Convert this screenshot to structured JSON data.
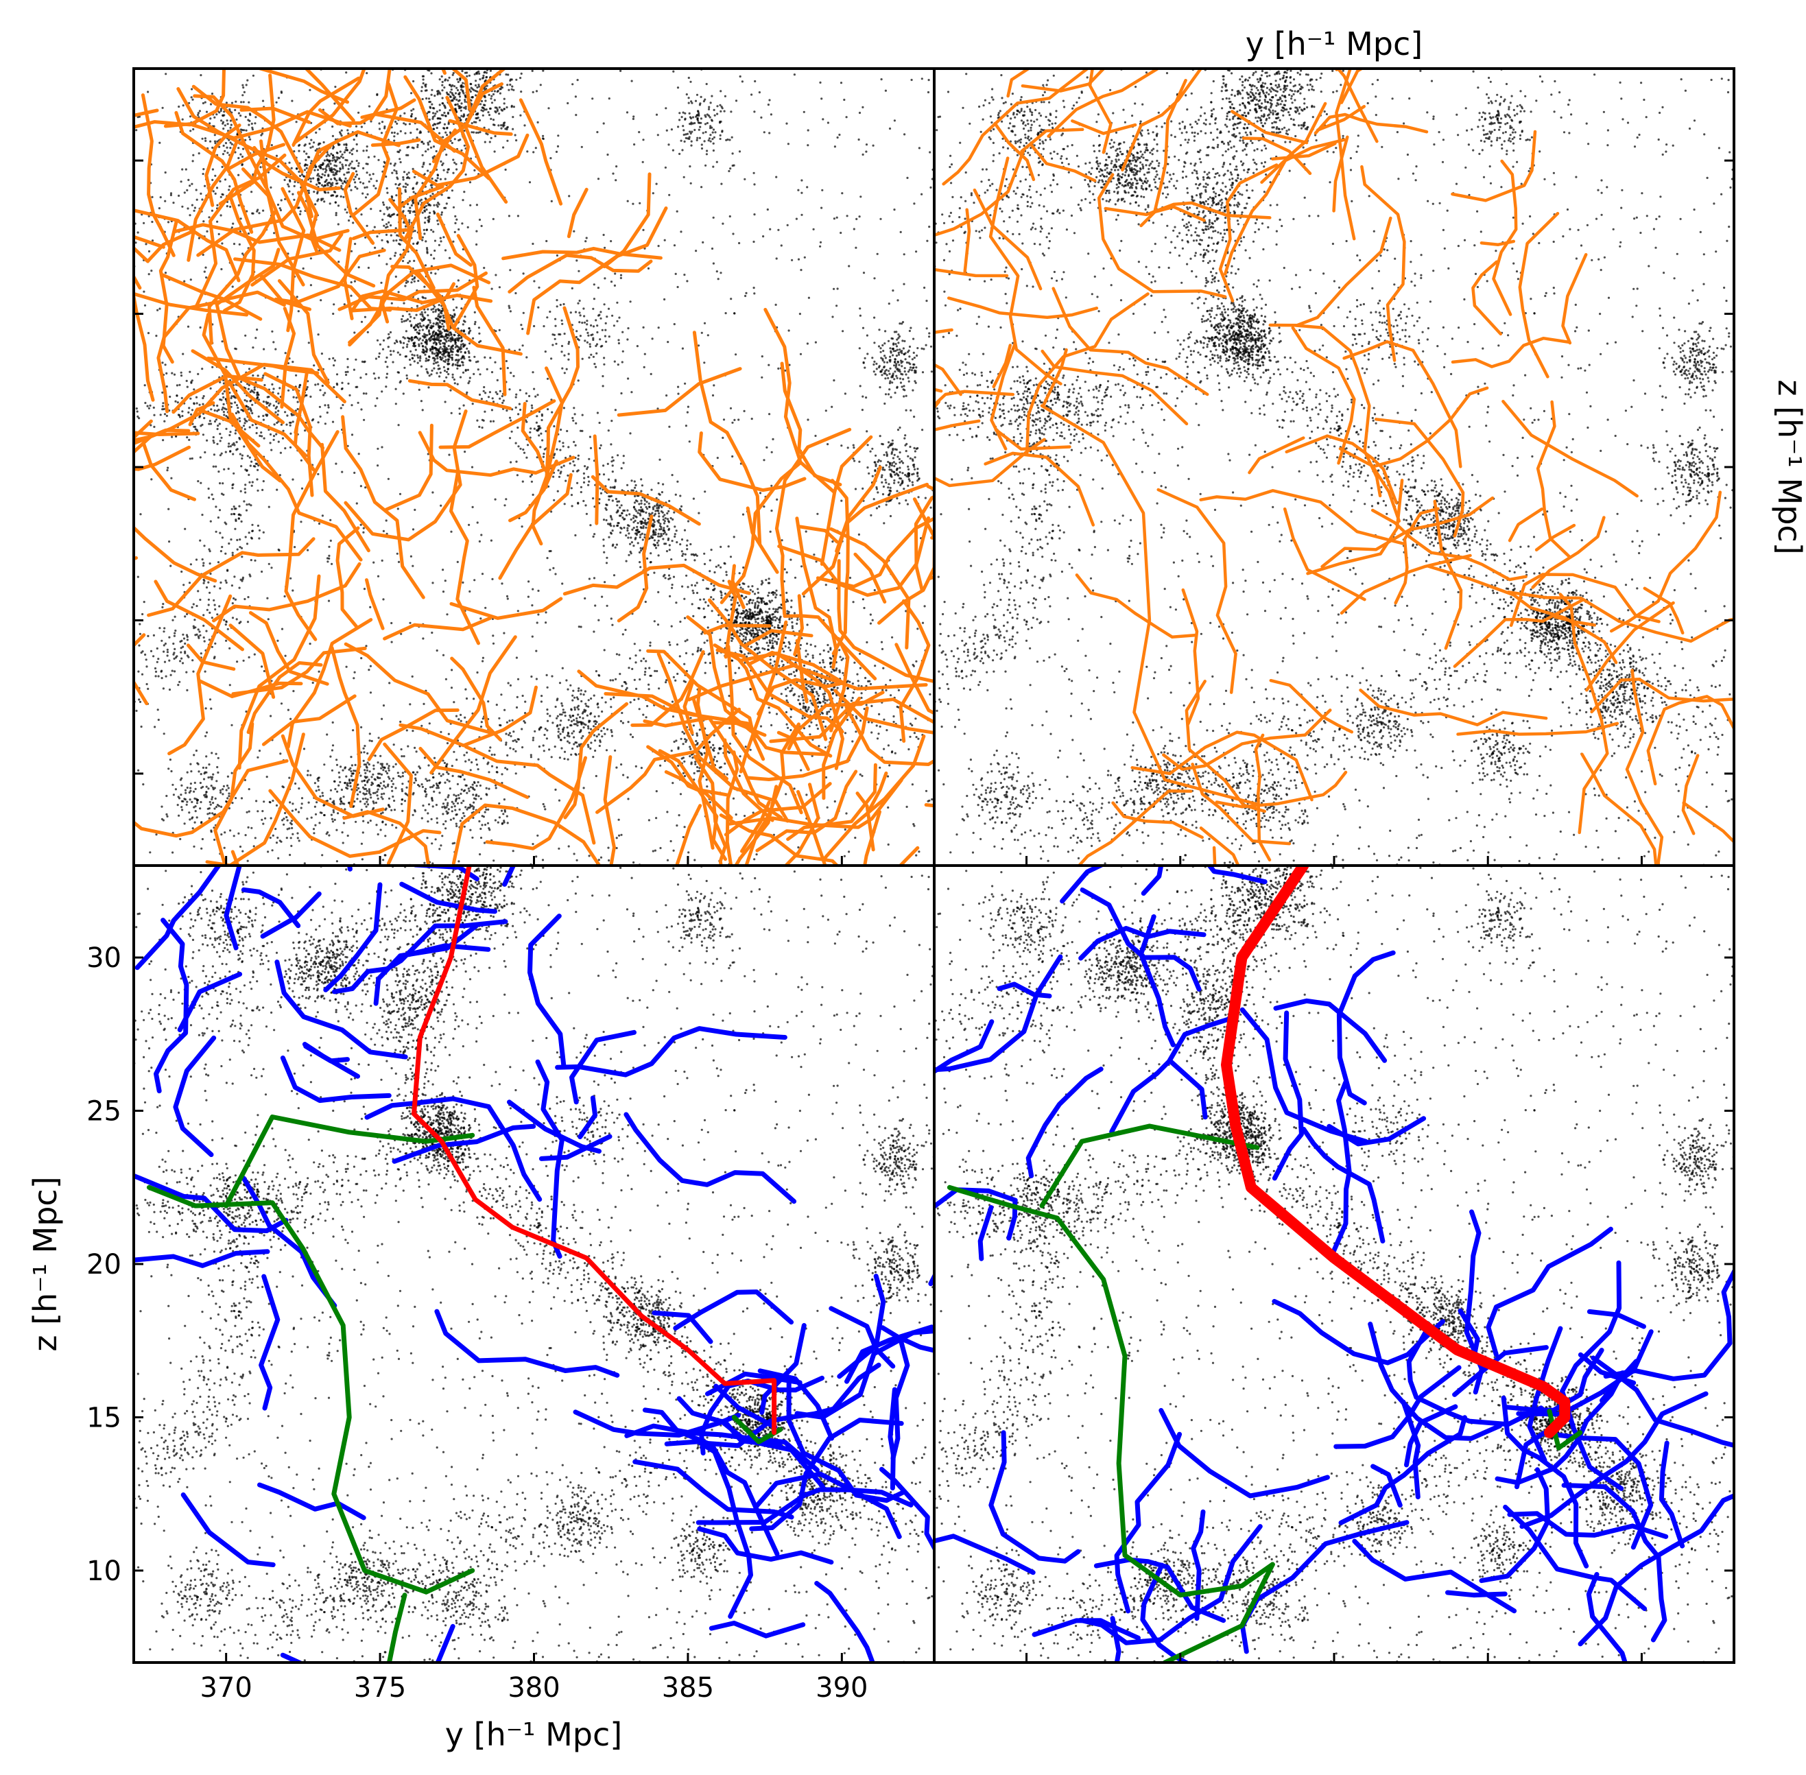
{
  "chart_data": [
    {
      "panel": "top-left",
      "type": "scatter",
      "xlim": [
        367,
        393
      ],
      "ylim": [
        7,
        33
      ],
      "series": [
        {
          "role": "dark-matter particles",
          "color": "#000000"
        },
        {
          "role": "network edges",
          "color": "#ff7f0e"
        }
      ]
    },
    {
      "panel": "top-right",
      "type": "scatter",
      "xlim": [
        367,
        393
      ],
      "ylim": [
        7,
        33
      ],
      "xlabel": "y [h⁻¹ Mpc]",
      "ylabel": "z [h⁻¹ Mpc]",
      "xlabel_position": "top",
      "ylabel_position": "right",
      "series": [
        {
          "role": "dark-matter particles",
          "color": "#000000"
        },
        {
          "role": "network edges",
          "color": "#ff7f0e"
        }
      ]
    },
    {
      "panel": "bottom-left",
      "type": "scatter",
      "xlim": [
        367,
        393
      ],
      "ylim": [
        7,
        33
      ],
      "xticks": [
        370,
        375,
        380,
        385,
        390
      ],
      "yticks": [
        10,
        15,
        20,
        25,
        30
      ],
      "xlabel": "y [h⁻¹ Mpc]",
      "ylabel": "z [h⁻¹ Mpc]",
      "series": [
        {
          "role": "dark-matter particles",
          "color": "#000000"
        },
        {
          "role": "filaments",
          "color": "#0000ff"
        },
        {
          "role": "secondary filaments",
          "color": "#008000"
        },
        {
          "role": "main filament",
          "color": "#ff0000",
          "x": [
            377.9,
            377.3,
            376.3,
            376.1,
            377.0,
            378.1,
            379.3,
            381.7,
            383.5,
            385.0,
            386.2,
            387.8,
            387.8
          ],
          "y": [
            33.0,
            30.0,
            27.4,
            24.9,
            24.0,
            22.1,
            21.2,
            20.2,
            18.3,
            17.2,
            16.1,
            16.2,
            14.5
          ]
        }
      ]
    },
    {
      "panel": "bottom-right",
      "type": "scatter",
      "xlim": [
        367,
        393
      ],
      "ylim": [
        7,
        33
      ],
      "series": [
        {
          "role": "dark-matter particles",
          "color": "#000000"
        },
        {
          "role": "filaments",
          "color": "#0000ff"
        },
        {
          "role": "secondary filaments",
          "color": "#008000"
        },
        {
          "role": "main filament",
          "color": "#ff0000",
          "x": [
            379.0,
            377.0,
            376.5,
            376.8,
            377.3,
            380.0,
            384.0,
            386.8,
            387.5,
            387.5,
            387.0
          ],
          "y": [
            33.0,
            30.0,
            26.5,
            24.5,
            22.5,
            20.2,
            17.2,
            16.0,
            15.5,
            15.0,
            14.5
          ]
        }
      ]
    }
  ],
  "colors": {
    "particles": "#000000",
    "orange": "#ff7f0e",
    "blue": "#0000ff",
    "green": "#008000",
    "red": "#ff0000"
  }
}
